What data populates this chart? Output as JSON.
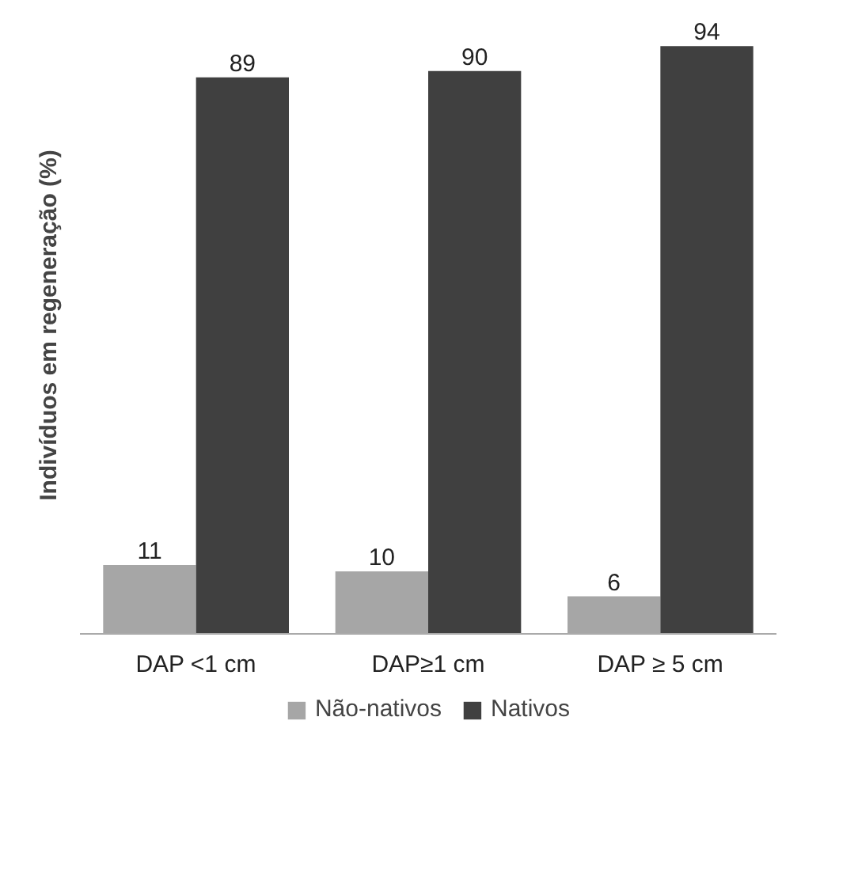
{
  "chart_data": {
    "type": "bar",
    "ylabel": "Indivíduos em regeneração (%)",
    "categories": [
      "DAP <1 cm",
      "DAP≥1 cm",
      "DAP ≥ 5 cm"
    ],
    "series": [
      {
        "name": "Não-nativos",
        "color": "#a6a6a6",
        "values": [
          11,
          10,
          6
        ]
      },
      {
        "name": "Nativos",
        "color": "#404040",
        "values": [
          89,
          90,
          94
        ]
      }
    ],
    "data_labels": true,
    "legend": "bottom",
    "grid": false
  }
}
